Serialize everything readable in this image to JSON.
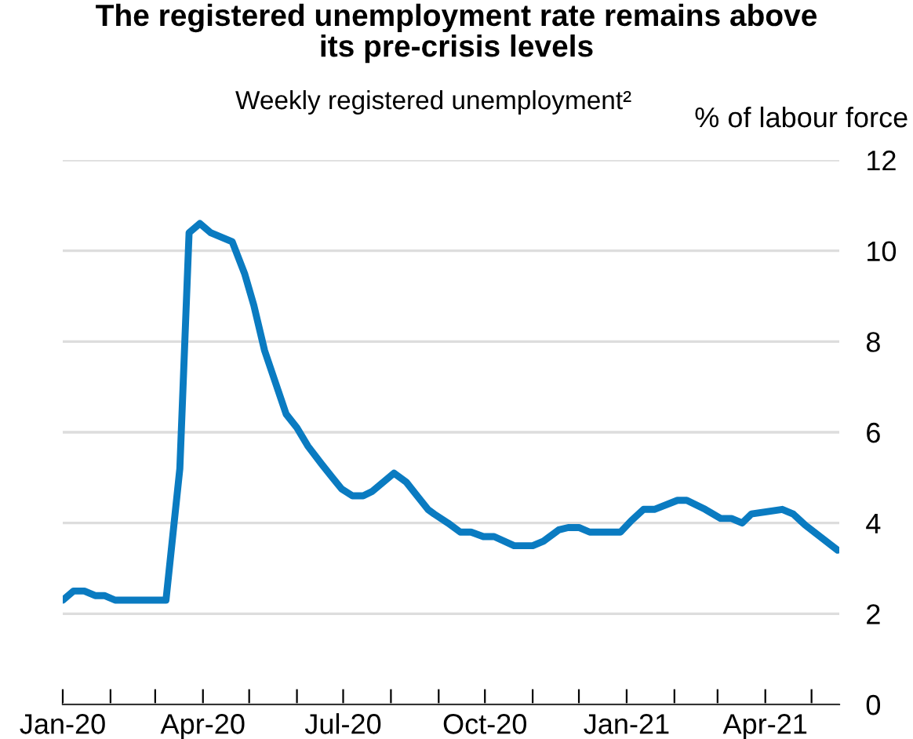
{
  "chart_data": {
    "type": "line",
    "title": "The registered unemployment rate remains above\nits pre-crisis levels",
    "subtitle": "Weekly registered unemployment²",
    "ylabel": "% of labour force",
    "x": [
      "2020-01-01",
      "2020-01-08",
      "2020-01-15",
      "2020-01-22",
      "2020-01-28",
      "2020-02-04",
      "2020-03-08",
      "2020-03-17",
      "2020-03-23",
      "2020-03-30",
      "2020-04-06",
      "2020-04-20",
      "2020-04-28",
      "2020-05-04",
      "2020-05-11",
      "2020-05-18",
      "2020-05-25",
      "2020-06-01",
      "2020-06-08",
      "2020-06-17",
      "2020-06-24",
      "2020-06-30",
      "2020-07-07",
      "2020-07-14",
      "2020-07-20",
      "2020-07-27",
      "2020-08-03",
      "2020-08-11",
      "2020-08-18",
      "2020-08-25",
      "2020-08-29",
      "2020-09-07",
      "2020-09-15",
      "2020-09-22",
      "2020-09-30",
      "2020-10-07",
      "2020-10-20",
      "2020-11-01",
      "2020-11-08",
      "2020-11-18",
      "2020-11-24",
      "2020-12-01",
      "2020-12-08",
      "2020-12-28",
      "2021-01-04",
      "2021-01-12",
      "2021-01-19",
      "2021-02-03",
      "2021-02-09",
      "2021-02-21",
      "2021-03-03",
      "2021-03-10",
      "2021-03-17",
      "2021-03-23",
      "2021-04-12",
      "2021-04-19",
      "2021-04-27",
      "2021-05-18"
    ],
    "series": [
      {
        "color": "#0a7bc1",
        "values": [
          2.3,
          2.5,
          2.5,
          2.4,
          2.4,
          2.3,
          2.3,
          5.2,
          10.4,
          10.6,
          10.4,
          10.2,
          9.5,
          8.8,
          7.8,
          7.1,
          6.4,
          6.1,
          5.7,
          5.3,
          5.0,
          4.75,
          4.6,
          4.6,
          4.7,
          4.9,
          5.1,
          4.9,
          4.6,
          4.3,
          4.2,
          4.0,
          3.8,
          3.8,
          3.7,
          3.7,
          3.5,
          3.5,
          3.6,
          3.85,
          3.9,
          3.9,
          3.8,
          3.8,
          4.05,
          4.3,
          4.3,
          4.5,
          4.5,
          4.3,
          4.1,
          4.1,
          4.0,
          4.2,
          4.3,
          4.2,
          3.95,
          3.4
        ]
      }
    ],
    "xlim": [
      "2020-01-01",
      "2021-05-19"
    ],
    "xticks": [
      {
        "value": "2020-01-01",
        "label": "Jan-20"
      },
      {
        "value": "2020-02-01",
        "label": null
      },
      {
        "value": "2020-03-01",
        "label": null
      },
      {
        "value": "2020-04-01",
        "label": "Apr-20"
      },
      {
        "value": "2020-05-01",
        "label": null
      },
      {
        "value": "2020-06-01",
        "label": null
      },
      {
        "value": "2020-07-01",
        "label": "Jul-20"
      },
      {
        "value": "2020-08-01",
        "label": null
      },
      {
        "value": "2020-09-01",
        "label": null
      },
      {
        "value": "2020-10-01",
        "label": "Oct-20"
      },
      {
        "value": "2020-11-01",
        "label": null
      },
      {
        "value": "2020-12-01",
        "label": null
      },
      {
        "value": "2021-01-01",
        "label": "Jan-21"
      },
      {
        "value": "2021-02-01",
        "label": null
      },
      {
        "value": "2021-03-01",
        "label": null
      },
      {
        "value": "2021-04-01",
        "label": "Apr-21"
      },
      {
        "value": "2021-05-01",
        "label": null
      }
    ],
    "ylim": [
      0,
      12
    ],
    "yticks": [
      0,
      2,
      4,
      6,
      8,
      10,
      12
    ],
    "grid": "y",
    "legend": false,
    "marker": "none",
    "line_style": "solid"
  }
}
